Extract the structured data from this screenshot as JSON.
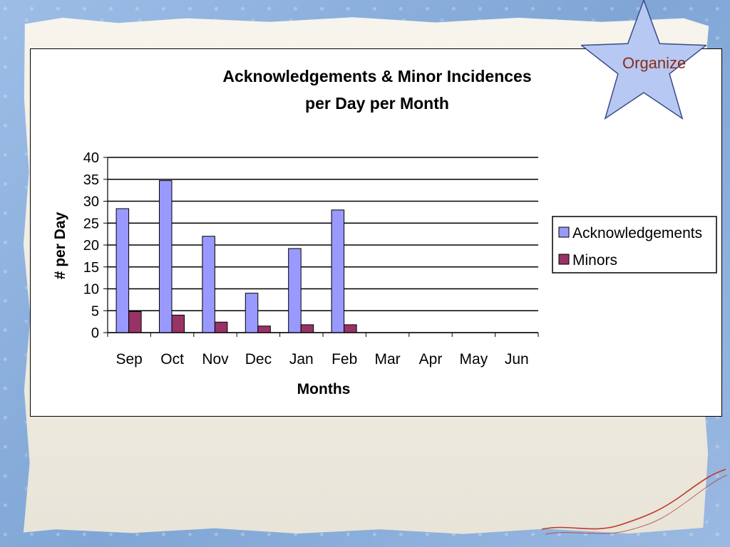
{
  "badge": {
    "label": "Organize"
  },
  "colors": {
    "acknowledgements": "#9999ff",
    "minors": "#993366",
    "badge_text": "#8b2a1a",
    "star_fill": "#b7c9f2"
  },
  "chart_data": {
    "type": "bar",
    "title": "Acknowledgements & Minor Incidences",
    "subtitle": "per Day per Month",
    "xlabel": "Months",
    "ylabel": "# per Day",
    "ylim": [
      0,
      40
    ],
    "yticks": [
      0,
      5,
      10,
      15,
      20,
      25,
      30,
      35,
      40
    ],
    "grid": true,
    "legend_position": "right",
    "categories": [
      "Sep",
      "Oct",
      "Nov",
      "Dec",
      "Jan",
      "Feb",
      "Mar",
      "Apr",
      "May",
      "Jun"
    ],
    "series": [
      {
        "name": "Acknowledgements",
        "values": [
          28.3,
          34.7,
          22,
          9,
          19.2,
          28,
          null,
          null,
          null,
          null
        ]
      },
      {
        "name": "Minors",
        "values": [
          4.8,
          4,
          2.4,
          1.5,
          1.8,
          1.8,
          null,
          null,
          null,
          null
        ]
      }
    ]
  }
}
